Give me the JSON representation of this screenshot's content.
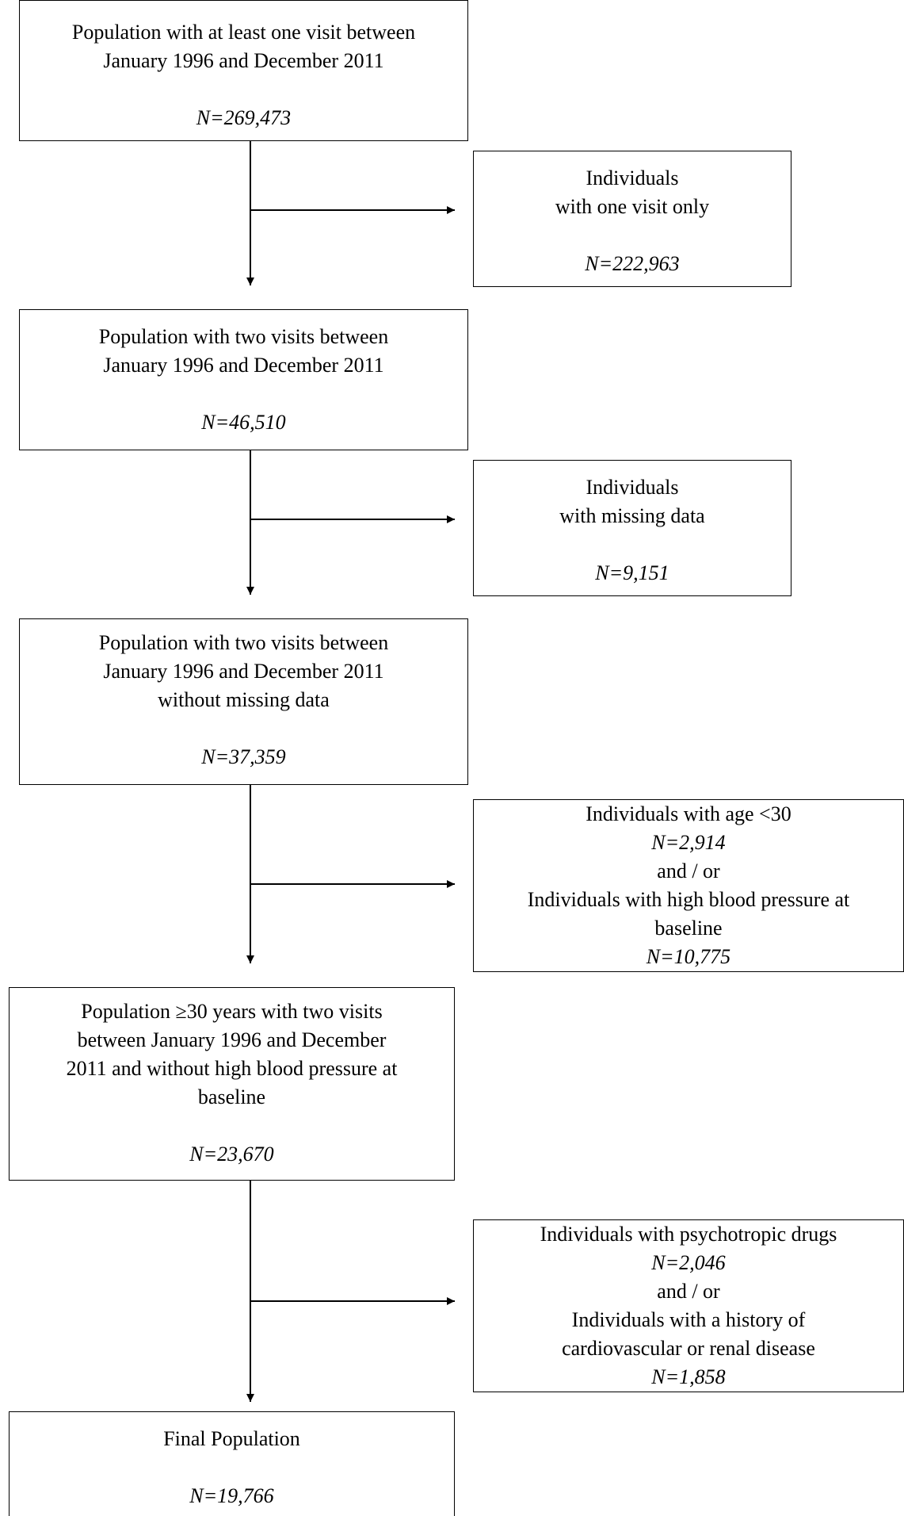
{
  "steps": [
    {
      "lines": [
        "Population with at least one visit between",
        "January 1996 and December 2011"
      ],
      "n": "N=269,473"
    },
    {
      "lines": [
        "Population with two visits between",
        "January 1996 and December 2011"
      ],
      "n": "N=46,510"
    },
    {
      "lines": [
        "Population with two visits between",
        "January 1996 and December 2011",
        "without missing data"
      ],
      "n": "N=37,359"
    },
    {
      "lines": [
        "Population ≥30 years with two visits",
        "between January 1996 and December",
        "2011 and without high blood pressure at",
        "baseline"
      ],
      "n": "N=23,670"
    },
    {
      "lines": [
        "Final Population"
      ],
      "n": "N=19,766"
    }
  ],
  "exclusions": [
    {
      "lines": [
        "Individuals",
        "with one visit only"
      ],
      "n": "N=222,963"
    },
    {
      "lines": [
        "Individuals",
        "with missing data"
      ],
      "n": "N=9,151"
    },
    {
      "line1": "Individuals with age <30",
      "n1": "N=2,914",
      "joiner": "and / or",
      "line2": "Individuals with high blood pressure at",
      "line3": "baseline",
      "n2": "N=10,775"
    },
    {
      "line1": "Individuals with psychotropic drugs",
      "n1": "N=2,046",
      "joiner": "and / or",
      "line2": "Individuals with a history of",
      "line3": "cardiovascular or renal disease",
      "n2": "N=1,858"
    }
  ],
  "colors": {
    "stroke": "#000000",
    "background": "#ffffff"
  }
}
